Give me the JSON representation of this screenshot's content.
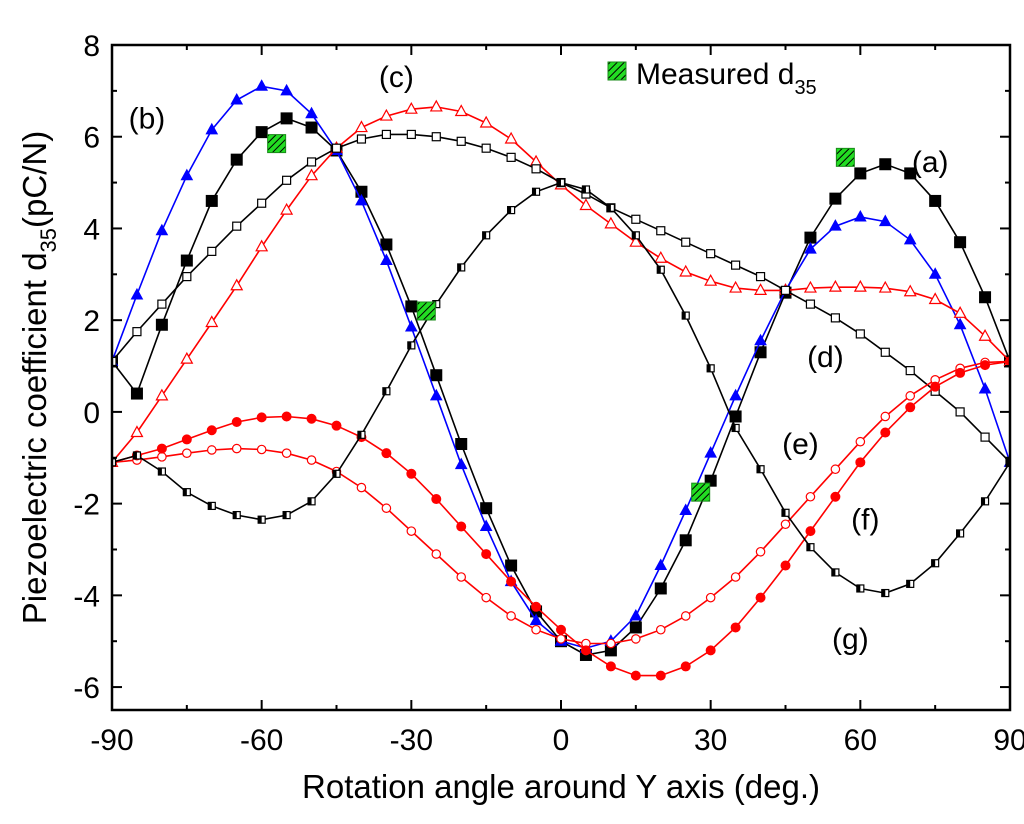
{
  "chart_data": {
    "type": "line",
    "xlabel": "Rotation angle around Y axis (deg.)",
    "ylabel_main": "Piezoelectric coefficient d",
    "ylabel_sub": "35",
    "ylabel_unit": "(pC/N)",
    "xlim": [
      -90,
      90
    ],
    "ylim": [
      -6.5,
      8
    ],
    "x_ticks": [
      -90,
      -60,
      -30,
      0,
      30,
      60,
      90
    ],
    "y_ticks": [
      -6,
      -4,
      -2,
      0,
      2,
      4,
      6,
      8
    ],
    "x_tick_labels": [
      "-90",
      "-60",
      "-30",
      "0",
      "30",
      "60",
      "90"
    ],
    "y_tick_labels": [
      "-6",
      "-4",
      "-2",
      "0",
      "2",
      "4",
      "6",
      "8"
    ],
    "grid": false,
    "series": [
      {
        "name": "(a)",
        "color": "#000000",
        "marker": "square-filled",
        "x": [
          -90,
          -85,
          -80,
          -75,
          -70,
          -65,
          -60,
          -55,
          -50,
          -45,
          -40,
          -35,
          -30,
          -25,
          -20,
          -15,
          -10,
          -5,
          0,
          5,
          10,
          15,
          20,
          25,
          30,
          35,
          40,
          45,
          50,
          55,
          60,
          65,
          70,
          75,
          80,
          85,
          90
        ],
        "y": [
          1.1,
          0.4,
          1.9,
          3.3,
          4.6,
          5.5,
          6.1,
          6.4,
          6.2,
          5.7,
          4.8,
          3.65,
          2.3,
          0.8,
          -0.7,
          -2.1,
          -3.35,
          -4.35,
          -5.0,
          -5.3,
          -5.2,
          -4.7,
          -3.85,
          -2.8,
          -1.5,
          -0.1,
          1.3,
          2.6,
          3.8,
          4.65,
          5.2,
          5.4,
          5.2,
          4.6,
          3.7,
          2.5,
          1.1
        ]
      },
      {
        "name": "(b)",
        "color": "#0000ff",
        "marker": "triangle-filled",
        "x": [
          -90,
          -85,
          -80,
          -75,
          -70,
          -65,
          -60,
          -55,
          -50,
          -45,
          -40,
          -35,
          -30,
          -25,
          -20,
          -15,
          -10,
          -5,
          0,
          5,
          10,
          15,
          20,
          25,
          30,
          35,
          40,
          45,
          50,
          55,
          60,
          65,
          70,
          75,
          80,
          85,
          90
        ],
        "y": [
          1.1,
          2.55,
          3.95,
          5.15,
          6.15,
          6.8,
          7.1,
          7.0,
          6.5,
          5.7,
          4.6,
          3.3,
          1.85,
          0.35,
          -1.15,
          -2.5,
          -3.7,
          -4.55,
          -5.0,
          -5.15,
          -5.0,
          -4.45,
          -3.35,
          -2.15,
          -0.9,
          0.35,
          1.55,
          2.65,
          3.55,
          4.05,
          4.25,
          4.15,
          3.75,
          3.0,
          1.9,
          0.5,
          -1.1
        ]
      },
      {
        "name": "(c)",
        "color": "#ff0000",
        "marker": "triangle-open",
        "x": [
          -90,
          -85,
          -80,
          -75,
          -70,
          -65,
          -60,
          -55,
          -50,
          -45,
          -40,
          -35,
          -30,
          -25,
          -20,
          -15,
          -10,
          -5,
          0,
          5,
          10,
          15,
          20,
          25,
          30,
          35,
          40,
          45,
          50,
          55,
          60,
          65,
          70,
          75,
          80,
          85,
          90
        ],
        "y": [
          -1.1,
          -0.45,
          0.35,
          1.15,
          1.95,
          2.75,
          3.6,
          4.4,
          5.15,
          5.75,
          6.2,
          6.45,
          6.6,
          6.65,
          6.55,
          6.3,
          5.95,
          5.45,
          4.95,
          4.5,
          4.1,
          3.7,
          3.35,
          3.05,
          2.85,
          2.7,
          2.65,
          2.65,
          2.7,
          2.72,
          2.72,
          2.7,
          2.62,
          2.45,
          2.15,
          1.65,
          1.1
        ]
      },
      {
        "name": "(d)",
        "color": "#000000",
        "marker": "square-open",
        "x": [
          -90,
          -85,
          -80,
          -75,
          -70,
          -65,
          -60,
          -55,
          -50,
          -45,
          -40,
          -35,
          -30,
          -25,
          -20,
          -15,
          -10,
          -5,
          0,
          5,
          10,
          15,
          20,
          25,
          30,
          35,
          40,
          45,
          50,
          55,
          60,
          65,
          70,
          75,
          80,
          85,
          90
        ],
        "y": [
          1.1,
          1.75,
          2.35,
          2.95,
          3.5,
          4.05,
          4.55,
          5.05,
          5.45,
          5.75,
          5.95,
          6.05,
          6.05,
          6.0,
          5.9,
          5.75,
          5.55,
          5.3,
          5.0,
          4.75,
          4.45,
          4.2,
          3.95,
          3.7,
          3.45,
          3.2,
          2.95,
          2.65,
          2.35,
          2.05,
          1.7,
          1.3,
          0.9,
          0.45,
          0.0,
          -0.55,
          -1.1
        ]
      },
      {
        "name": "(e)",
        "color": "#ff0000",
        "marker": "circle-open",
        "x": [
          -90,
          -85,
          -80,
          -75,
          -70,
          -65,
          -60,
          -55,
          -50,
          -45,
          -40,
          -35,
          -30,
          -25,
          -20,
          -15,
          -10,
          -5,
          0,
          5,
          10,
          15,
          20,
          25,
          30,
          35,
          40,
          45,
          50,
          55,
          60,
          65,
          70,
          75,
          80,
          85,
          90
        ],
        "y": [
          -1.1,
          -1.05,
          -0.98,
          -0.9,
          -0.83,
          -0.8,
          -0.82,
          -0.9,
          -1.05,
          -1.3,
          -1.65,
          -2.1,
          -2.6,
          -3.1,
          -3.6,
          -4.05,
          -4.45,
          -4.75,
          -4.95,
          -5.05,
          -5.05,
          -4.95,
          -4.75,
          -4.45,
          -4.05,
          -3.6,
          -3.05,
          -2.45,
          -1.85,
          -1.25,
          -0.65,
          -0.1,
          0.35,
          0.7,
          0.95,
          1.08,
          1.1
        ]
      },
      {
        "name": "(f)",
        "color": "#ff0000",
        "marker": "circle-filled",
        "x": [
          -90,
          -85,
          -80,
          -75,
          -70,
          -65,
          -60,
          -55,
          -50,
          -45,
          -40,
          -35,
          -30,
          -25,
          -20,
          -15,
          -10,
          -5,
          0,
          5,
          10,
          15,
          20,
          25,
          30,
          35,
          40,
          45,
          50,
          55,
          60,
          65,
          70,
          75,
          80,
          85,
          90
        ],
        "y": [
          -1.1,
          -0.95,
          -0.8,
          -0.6,
          -0.4,
          -0.22,
          -0.12,
          -0.1,
          -0.15,
          -0.3,
          -0.55,
          -0.9,
          -1.35,
          -1.9,
          -2.5,
          -3.1,
          -3.7,
          -4.25,
          -4.75,
          -5.2,
          -5.55,
          -5.75,
          -5.75,
          -5.55,
          -5.2,
          -4.7,
          -4.05,
          -3.35,
          -2.6,
          -1.85,
          -1.1,
          -0.45,
          0.1,
          0.55,
          0.85,
          1.02,
          1.1
        ]
      },
      {
        "name": "(g)",
        "color": "#000000",
        "marker": "square-half",
        "x": [
          -90,
          -85,
          -80,
          -75,
          -70,
          -65,
          -60,
          -55,
          -50,
          -45,
          -40,
          -35,
          -30,
          -25,
          -20,
          -15,
          -10,
          -5,
          0,
          5,
          10,
          15,
          20,
          25,
          30,
          35,
          40,
          45,
          50,
          55,
          60,
          65,
          70,
          75,
          80,
          85,
          90
        ],
        "y": [
          -1.1,
          -0.95,
          -1.3,
          -1.75,
          -2.05,
          -2.25,
          -2.35,
          -2.25,
          -1.95,
          -1.35,
          -0.5,
          0.45,
          1.45,
          2.35,
          3.15,
          3.85,
          4.4,
          4.8,
          5.0,
          4.85,
          4.45,
          3.85,
          3.1,
          2.1,
          0.95,
          -0.35,
          -1.25,
          -2.2,
          -2.95,
          -3.5,
          -3.85,
          -3.95,
          -3.75,
          -3.3,
          -2.65,
          -1.95,
          -1.1
        ]
      }
    ],
    "measured": {
      "name": "Measured d",
      "name_sub": "35",
      "color": "#22dd22",
      "points": [
        {
          "x": -57,
          "y": 5.85
        },
        {
          "x": -27,
          "y": 2.2
        },
        {
          "x": 28,
          "y": -1.75
        },
        {
          "x": 57,
          "y": 5.55
        }
      ]
    },
    "curve_labels": [
      {
        "text": "(a)",
        "x": 74,
        "y": 5.45
      },
      {
        "text": "(b)",
        "x": -83,
        "y": 6.4
      },
      {
        "text": "(c)",
        "x": -33,
        "y": 7.3
      },
      {
        "text": "(d)",
        "x": 53,
        "y": 1.2
      },
      {
        "text": "(e)",
        "x": 48,
        "y": -0.7
      },
      {
        "text": "(f)",
        "x": 61,
        "y": -2.35
      },
      {
        "text": "(g)",
        "x": 58,
        "y": -4.95
      }
    ],
    "legend_position": "top-right"
  }
}
